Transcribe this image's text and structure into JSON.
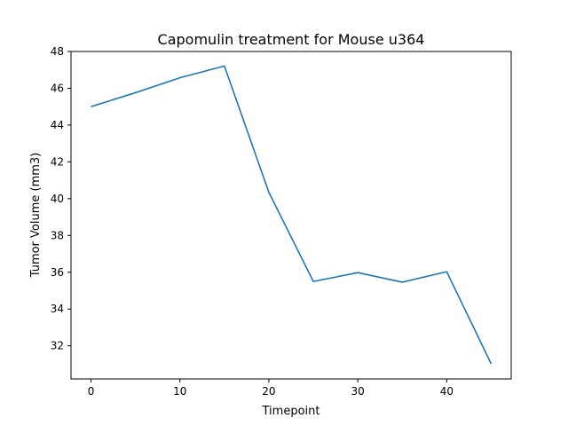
{
  "chart_data": {
    "type": "line",
    "title": "Capomulin treatment for Mouse u364",
    "xlabel": "Timepoint",
    "ylabel": "Tumor Volume (mm3)",
    "xlim": [
      -2.25,
      47.25
    ],
    "ylim": [
      30.2,
      48.0
    ],
    "xticks": [
      0,
      10,
      20,
      30,
      40
    ],
    "yticks": [
      32,
      34,
      36,
      38,
      40,
      42,
      44,
      46,
      48
    ],
    "grid": false,
    "series": [
      {
        "color": "#1f77b4",
        "x": [
          0,
          5,
          10,
          15,
          20,
          25,
          30,
          35,
          40,
          45
        ],
        "y": [
          45.0,
          45.76,
          46.57,
          47.21,
          40.34,
          35.5,
          35.98,
          35.46,
          36.03,
          31.02
        ]
      }
    ]
  }
}
